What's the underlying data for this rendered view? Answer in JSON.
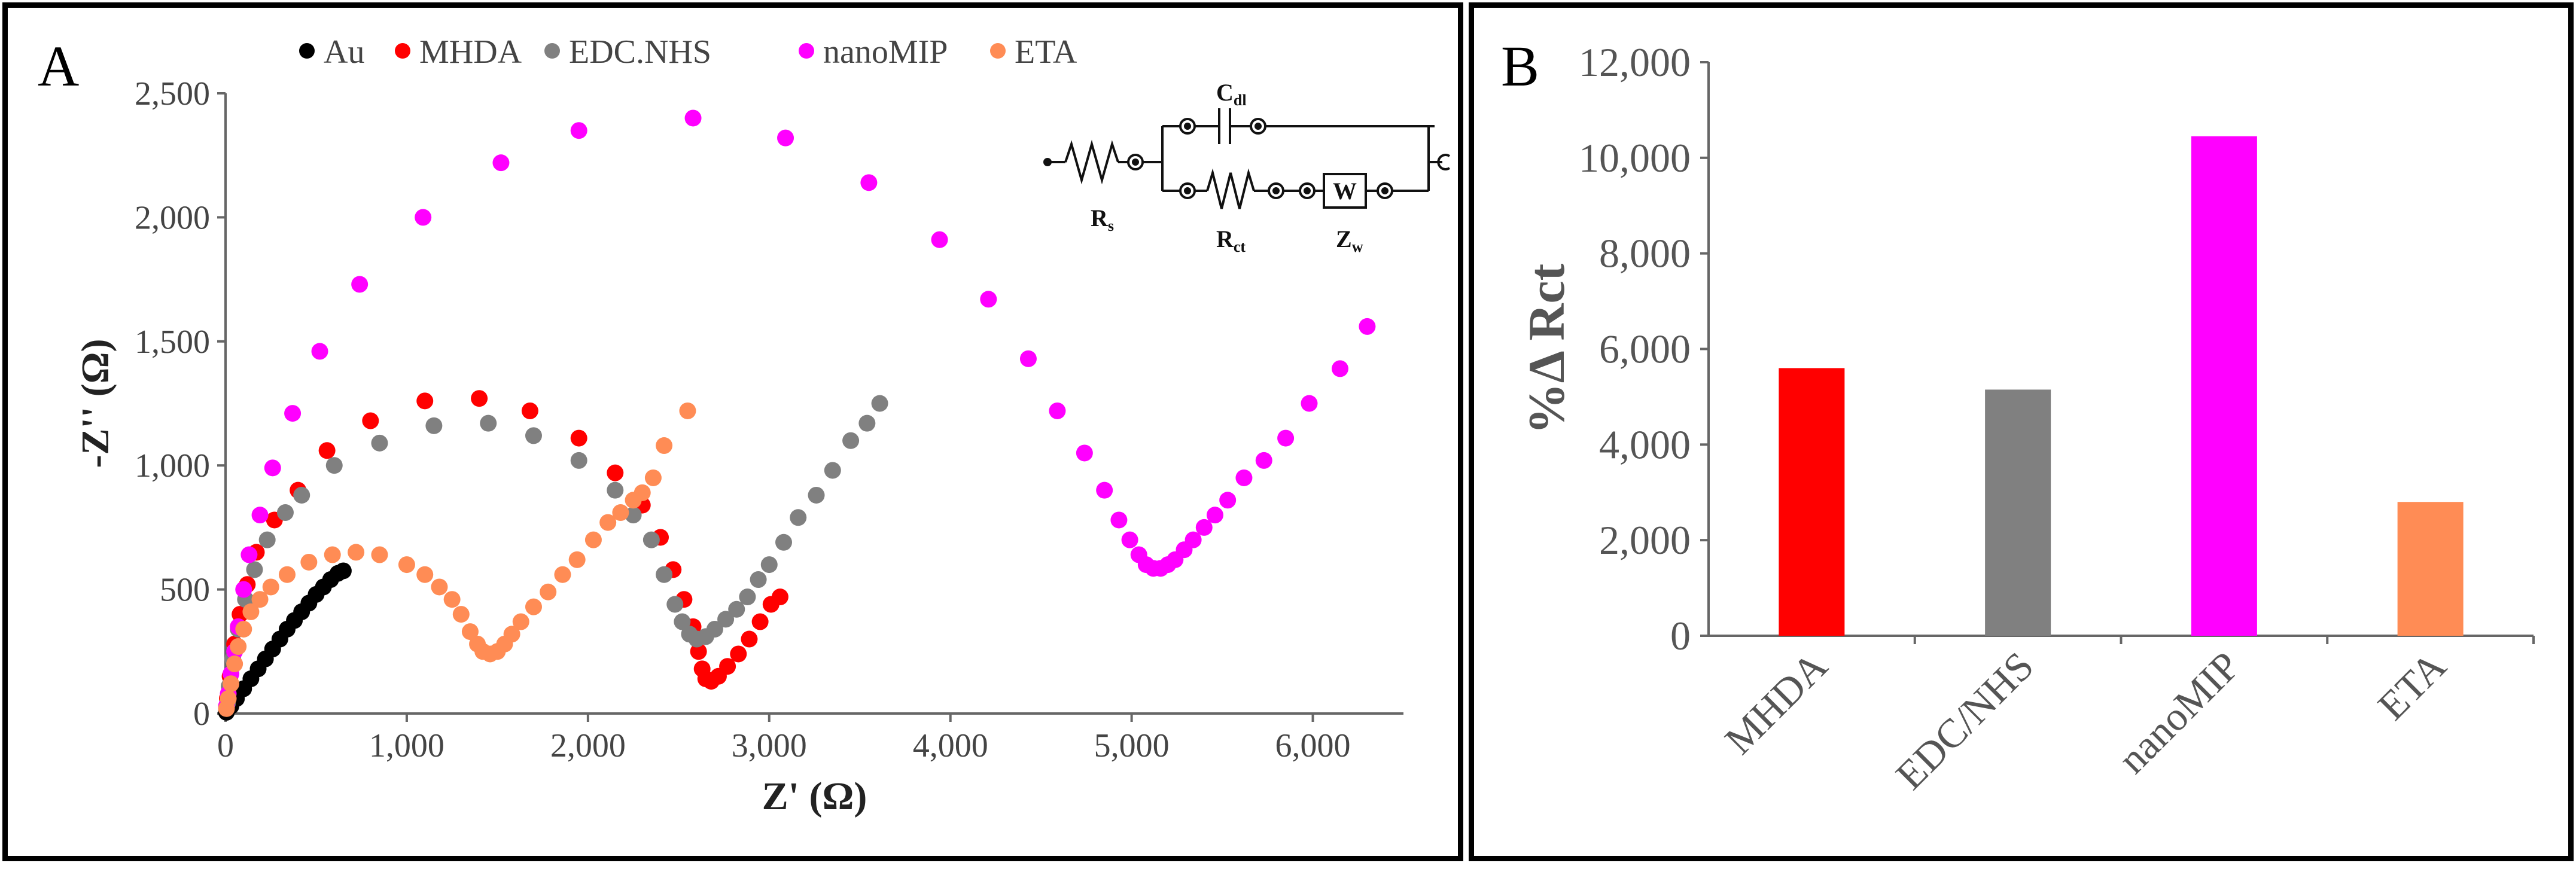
{
  "colors": {
    "Au": "#000000",
    "MHDA": "#ff0000",
    "EDC.NHS": "#808080",
    "nanoMIP": "#ff00ff",
    "ETA": "#ff8c55"
  },
  "chart_data": [
    {
      "panel": "A",
      "type": "scatter",
      "title": "",
      "xlabel": "Z' (Ω)",
      "ylabel": "-Z'' (Ω)",
      "xlim": [
        0,
        6500
      ],
      "ylim": [
        0,
        2500
      ],
      "xticks": [
        "0",
        "1,000",
        "2,000",
        "3,000",
        "4,000",
        "5,000",
        "6,000"
      ],
      "yticks": [
        "0",
        "500",
        "1,000",
        "1,500",
        "2,000",
        "2,500"
      ],
      "legend_position": "top",
      "series": [
        {
          "name": "Au",
          "points": [
            [
              5,
              5
            ],
            [
              30,
              30
            ],
            [
              60,
              60
            ],
            [
              100,
              100
            ],
            [
              140,
              140
            ],
            [
              180,
              180
            ],
            [
              220,
              220
            ],
            [
              260,
              260
            ],
            [
              300,
              300
            ],
            [
              340,
              340
            ],
            [
              380,
              375
            ],
            [
              420,
              410
            ],
            [
              460,
              445
            ],
            [
              500,
              480
            ],
            [
              540,
              510
            ],
            [
              580,
              540
            ],
            [
              620,
              565
            ],
            [
              650,
              575
            ]
          ]
        },
        {
          "name": "MHDA",
          "points": [
            [
              10,
              60
            ],
            [
              25,
              150
            ],
            [
              50,
              280
            ],
            [
              80,
              400
            ],
            [
              120,
              520
            ],
            [
              170,
              650
            ],
            [
              270,
              780
            ],
            [
              400,
              900
            ],
            [
              560,
              1060
            ],
            [
              800,
              1180
            ],
            [
              1100,
              1260
            ],
            [
              1400,
              1270
            ],
            [
              1680,
              1220
            ],
            [
              1950,
              1110
            ],
            [
              2150,
              970
            ],
            [
              2300,
              840
            ],
            [
              2400,
              710
            ],
            [
              2470,
              580
            ],
            [
              2530,
              460
            ],
            [
              2580,
              350
            ],
            [
              2610,
              250
            ],
            [
              2630,
              180
            ],
            [
              2650,
              140
            ],
            [
              2680,
              130
            ],
            [
              2720,
              150
            ],
            [
              2770,
              190
            ],
            [
              2830,
              240
            ],
            [
              2890,
              300
            ],
            [
              2950,
              370
            ],
            [
              3010,
              440
            ],
            [
              3060,
              470
            ]
          ]
        },
        {
          "name": "EDC.NHS",
          "points": [
            [
              10,
              40
            ],
            [
              20,
              110
            ],
            [
              40,
              220
            ],
            [
              70,
              340
            ],
            [
              110,
              460
            ],
            [
              160,
              580
            ],
            [
              230,
              700
            ],
            [
              330,
              810
            ],
            [
              420,
              880
            ],
            [
              600,
              1000
            ],
            [
              850,
              1090
            ],
            [
              1150,
              1160
            ],
            [
              1450,
              1170
            ],
            [
              1700,
              1120
            ],
            [
              1950,
              1020
            ],
            [
              2150,
              900
            ],
            [
              2250,
              800
            ],
            [
              2350,
              700
            ],
            [
              2420,
              560
            ],
            [
              2480,
              440
            ],
            [
              2520,
              370
            ],
            [
              2560,
              320
            ],
            [
              2600,
              300
            ],
            [
              2650,
              310
            ],
            [
              2700,
              340
            ],
            [
              2760,
              380
            ],
            [
              2820,
              420
            ],
            [
              2880,
              470
            ],
            [
              2940,
              540
            ],
            [
              3000,
              600
            ],
            [
              3080,
              690
            ],
            [
              3160,
              790
            ],
            [
              3260,
              880
            ],
            [
              3350,
              980
            ],
            [
              3450,
              1100
            ],
            [
              3540,
              1170
            ],
            [
              3610,
              1250
            ]
          ]
        },
        {
          "name": "nanoMIP",
          "points": [
            [
              5,
              30
            ],
            [
              15,
              80
            ],
            [
              30,
              160
            ],
            [
              50,
              250
            ],
            [
              70,
              350
            ],
            [
              100,
              500
            ],
            [
              130,
              640
            ],
            [
              190,
              800
            ],
            [
              260,
              990
            ],
            [
              370,
              1210
            ],
            [
              520,
              1460
            ],
            [
              740,
              1730
            ],
            [
              1090,
              2000
            ],
            [
              1520,
              2220
            ],
            [
              1950,
              2350
            ],
            [
              2580,
              2400
            ],
            [
              3090,
              2320
            ],
            [
              3550,
              2140
            ],
            [
              3940,
              1910
            ],
            [
              4210,
              1670
            ],
            [
              4430,
              1430
            ],
            [
              4590,
              1220
            ],
            [
              4740,
              1050
            ],
            [
              4850,
              900
            ],
            [
              4930,
              780
            ],
            [
              4990,
              700
            ],
            [
              5040,
              640
            ],
            [
              5080,
              600
            ],
            [
              5120,
              585
            ],
            [
              5160,
              585
            ],
            [
              5200,
              600
            ],
            [
              5240,
              620
            ],
            [
              5290,
              660
            ],
            [
              5340,
              700
            ],
            [
              5400,
              750
            ],
            [
              5460,
              800
            ],
            [
              5530,
              860
            ],
            [
              5620,
              950
            ],
            [
              5730,
              1020
            ],
            [
              5850,
              1110
            ],
            [
              5980,
              1250
            ],
            [
              6150,
              1390
            ],
            [
              6300,
              1560
            ]
          ]
        },
        {
          "name": "ETA",
          "points": [
            [
              5,
              20
            ],
            [
              15,
              60
            ],
            [
              30,
              120
            ],
            [
              50,
              200
            ],
            [
              70,
              270
            ],
            [
              100,
              340
            ],
            [
              140,
              410
            ],
            [
              190,
              460
            ],
            [
              250,
              510
            ],
            [
              340,
              560
            ],
            [
              460,
              610
            ],
            [
              590,
              640
            ],
            [
              720,
              650
            ],
            [
              850,
              640
            ],
            [
              1000,
              600
            ],
            [
              1100,
              560
            ],
            [
              1180,
              510
            ],
            [
              1250,
              460
            ],
            [
              1300,
              400
            ],
            [
              1350,
              330
            ],
            [
              1390,
              280
            ],
            [
              1420,
              250
            ],
            [
              1460,
              240
            ],
            [
              1500,
              250
            ],
            [
              1540,
              280
            ],
            [
              1580,
              320
            ],
            [
              1630,
              370
            ],
            [
              1700,
              430
            ],
            [
              1780,
              490
            ],
            [
              1860,
              560
            ],
            [
              1940,
              620
            ],
            [
              2030,
              700
            ],
            [
              2110,
              770
            ],
            [
              2180,
              810
            ],
            [
              2250,
              860
            ],
            [
              2300,
              890
            ],
            [
              2360,
              950
            ],
            [
              2420,
              1080
            ],
            [
              2550,
              1220
            ]
          ]
        }
      ],
      "inset_labels": {
        "cdl": "C",
        "cdl_sub": "dl",
        "rs": "R",
        "rs_sub": "s",
        "rct": "R",
        "rct_sub": "ct",
        "zw": "Z",
        "zw_sub": "w",
        "w_box": "W"
      }
    },
    {
      "panel": "B",
      "type": "bar",
      "title": "",
      "xlabel": "",
      "ylabel": "%Δ Rct",
      "ylim": [
        0,
        12000
      ],
      "yticks": [
        "0",
        "2,000",
        "4,000",
        "6,000",
        "8,000",
        "10,000",
        "12,000"
      ],
      "categories": [
        "MHDA",
        "EDC/NHS",
        "nanoMIP",
        "ETA"
      ],
      "values": [
        5600,
        5150,
        10450,
        2800
      ],
      "bar_colors": [
        "#ff0000",
        "#808080",
        "#ff00ff",
        "#ff8c55"
      ]
    }
  ],
  "panel_letters": {
    "a": "A",
    "b": "B"
  }
}
